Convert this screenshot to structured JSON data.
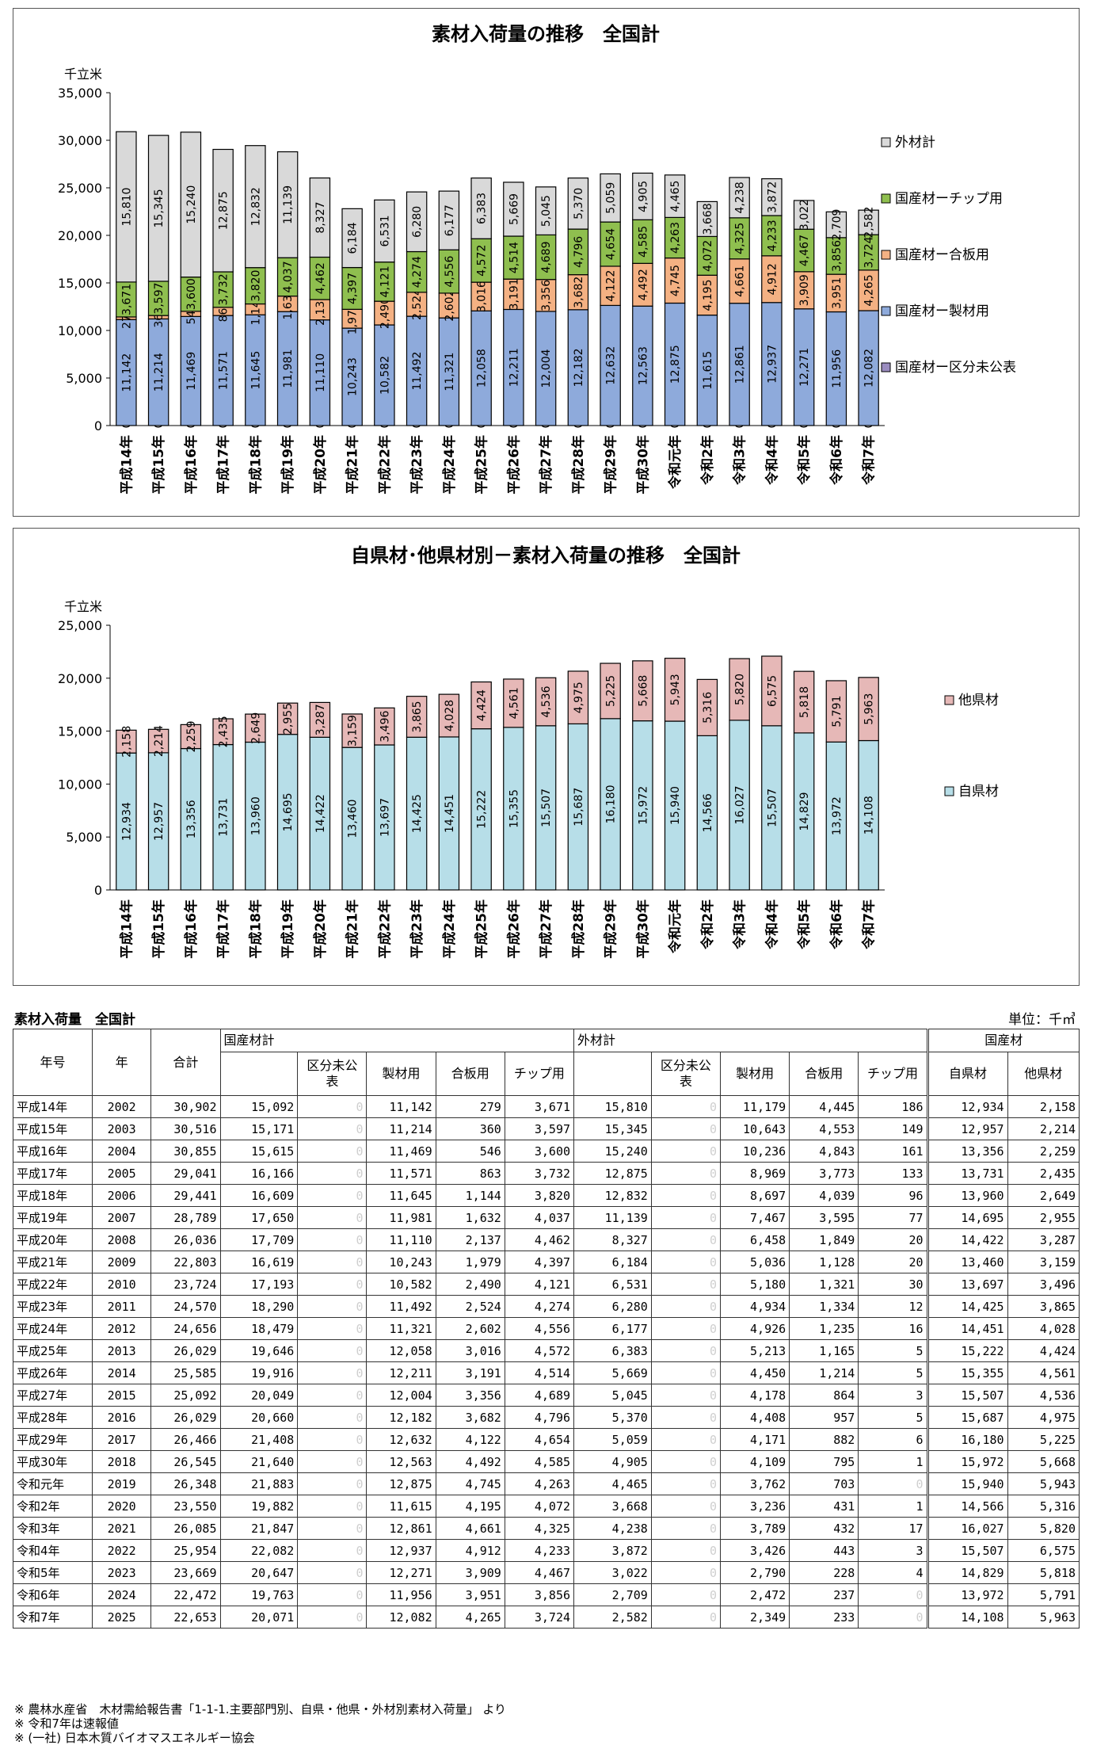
{
  "chart1": {
    "title": "素材入荷量の推移　全国計",
    "yunit": "千立米",
    "chart_data": {
      "type": "bar",
      "stacked": true,
      "title": "素材入荷量の推移　全国計",
      "ylabel": "千立米",
      "ylim": [
        0,
        35000
      ],
      "yticks": [
        "0",
        "5,000",
        "10,000",
        "15,000",
        "20,000",
        "25,000",
        "30,000",
        "35,000"
      ],
      "categories": [
        "平成14年",
        "平成15年",
        "平成16年",
        "平成17年",
        "平成18年",
        "平成19年",
        "平成20年",
        "平成21年",
        "平成22年",
        "平成23年",
        "平成24年",
        "平成25年",
        "平成26年",
        "平成27年",
        "平成28年",
        "平成29年",
        "平成30年",
        "令和元年",
        "令和2年",
        "令和3年",
        "令和4年",
        "令和5年",
        "令和6年",
        "令和7年"
      ],
      "legend_position": "right",
      "series": [
        {
          "name": "国産材ー区分未公表",
          "color": "#9b8dc0",
          "values": [
            0,
            0,
            0,
            0,
            0,
            0,
            0,
            0,
            0,
            0,
            0,
            0,
            0,
            0,
            0,
            0,
            0,
            0,
            0,
            0,
            0,
            0,
            0,
            0
          ]
        },
        {
          "name": "国産材ー製材用",
          "color": "#8eaadb",
          "values": [
            11142,
            11214,
            11469,
            11571,
            11645,
            11981,
            11110,
            10243,
            10582,
            11492,
            11321,
            12058,
            12211,
            12004,
            12182,
            12632,
            12563,
            12875,
            11615,
            12861,
            12937,
            12271,
            11956,
            12082
          ]
        },
        {
          "name": "国産材ー合板用",
          "color": "#f4b183",
          "values": [
            279,
            360,
            546,
            863,
            1144,
            1632,
            2137,
            1979,
            2490,
            2524,
            2602,
            3016,
            3191,
            3356,
            3682,
            4122,
            4492,
            4745,
            4195,
            4661,
            4912,
            3909,
            3951,
            4265
          ]
        },
        {
          "name": "国産材ーチップ用",
          "color": "#8fbf4f",
          "values": [
            3671,
            3597,
            3600,
            3732,
            3820,
            4037,
            4462,
            4397,
            4121,
            4274,
            4556,
            4572,
            4514,
            4689,
            4796,
            4654,
            4585,
            4263,
            4072,
            4325,
            4233,
            4467,
            3856,
            3724
          ]
        },
        {
          "name": "外材計",
          "color": "#d9d9d9",
          "values": [
            15810,
            15345,
            15240,
            12875,
            12832,
            11139,
            8327,
            6184,
            6531,
            6280,
            6177,
            6383,
            5669,
            5045,
            5370,
            5059,
            4905,
            4465,
            3668,
            4238,
            3872,
            3022,
            2709,
            2582
          ]
        }
      ],
      "legend": [
        "外材計",
        "国産材ーチップ用",
        "国産材ー合板用",
        "国産材ー製材用",
        "国産材ー区分未公表"
      ],
      "data_labels": {
        "国産材ー区分未公表": [
          "0",
          "0",
          "0",
          "0",
          "0",
          "0",
          "0",
          "0",
          "0",
          "0",
          "0",
          "0",
          "0",
          "0",
          "0",
          "0",
          "0",
          "0",
          "0",
          "0",
          "0",
          "0",
          "0",
          "0"
        ],
        "国産材ー製材用": [
          "11,142",
          "11,214",
          "11,469",
          "11,571",
          "11,645",
          "11,981",
          "11,110",
          "10,243",
          "10,582",
          "11,492",
          "11,321",
          "12,058",
          "12,211",
          "12,004",
          "12,182",
          "12,632",
          "12,563",
          "12,875",
          "11,615",
          "12,861",
          "12,937",
          "12,271",
          "11,956",
          "12,082"
        ],
        "国産材ー合板用": [
          "279",
          "360",
          "546",
          "863",
          "1,144",
          "1,632",
          "2,137",
          "1,979",
          "2,490",
          "2,524",
          "2,602",
          "3,016",
          "3,191",
          "3,356",
          "3,682",
          "4,122",
          "4,492",
          "4,745",
          "4,195",
          "4,661",
          "4,912",
          "3,909",
          "3,951",
          "4,265"
        ],
        "国産材ーチップ用": [
          "3,671",
          "3,597",
          "3,600",
          "3,732",
          "3,820",
          "4,037",
          "4,462",
          "4,397",
          "4,121",
          "4,274",
          "4,556",
          "4,572",
          "4,514",
          "4,689",
          "4,796",
          "4,654",
          "4,585",
          "4,263",
          "4,072",
          "4,325",
          "4,233",
          "4,467",
          "3,856",
          "3,724"
        ],
        "外材計": [
          "15,810",
          "15,345",
          "15,240",
          "12,875",
          "12,832",
          "11,139",
          "8,327",
          "6,184",
          "6,531",
          "6,280",
          "6,177",
          "6,383",
          "5,669",
          "5,045",
          "5,370",
          "5,059",
          "4,905",
          "4,465",
          "3,668",
          "4,238",
          "3,872",
          "3,022",
          "2,709",
          "2,582"
        ]
      }
    }
  },
  "chart2": {
    "title": "自県材･他県材別－素材入荷量の推移　全国計",
    "yunit": "千立米",
    "chart_data": {
      "type": "bar",
      "stacked": true,
      "title": "自県材･他県材別－素材入荷量の推移　全国計",
      "ylabel": "千立米",
      "ylim": [
        0,
        25000
      ],
      "yticks": [
        "0",
        "5,000",
        "10,000",
        "15,000",
        "20,000",
        "25,000"
      ],
      "categories": [
        "平成14年",
        "平成15年",
        "平成16年",
        "平成17年",
        "平成18年",
        "平成19年",
        "平成20年",
        "平成21年",
        "平成22年",
        "平成23年",
        "平成24年",
        "平成25年",
        "平成26年",
        "平成27年",
        "平成28年",
        "平成29年",
        "平成30年",
        "令和元年",
        "令和2年",
        "令和3年",
        "令和4年",
        "令和5年",
        "令和6年",
        "令和7年"
      ],
      "legend_position": "right",
      "series": [
        {
          "name": "自県材",
          "color": "#b7dee8",
          "values": [
            12934,
            12957,
            13356,
            13731,
            13960,
            14695,
            14422,
            13460,
            13697,
            14425,
            14451,
            15222,
            15355,
            15507,
            15687,
            16180,
            15972,
            15940,
            14566,
            16027,
            15507,
            14829,
            13972,
            14108
          ]
        },
        {
          "name": "他県材",
          "color": "#e6b8b7",
          "values": [
            2158,
            2214,
            2259,
            2435,
            2649,
            2955,
            3287,
            3159,
            3496,
            3865,
            4028,
            4424,
            4561,
            4536,
            4975,
            5225,
            5668,
            5943,
            5316,
            5820,
            6575,
            5818,
            5791,
            5963
          ]
        }
      ],
      "legend": [
        "他県材",
        "自県材"
      ],
      "data_labels": {
        "自県材": [
          "12,934",
          "12,957",
          "13,356",
          "13,731",
          "13,960",
          "14,695",
          "14,422",
          "13,460",
          "13,697",
          "14,425",
          "14,451",
          "15,222",
          "15,355",
          "15,507",
          "15,687",
          "16,180",
          "15,972",
          "15,940",
          "14,566",
          "16,027",
          "15,507",
          "14,829",
          "13,972",
          "14,108"
        ],
        "他県材": [
          "2,158",
          "2,214",
          "2,259",
          "2,435",
          "2,649",
          "2,955",
          "3,287",
          "3,159",
          "3,496",
          "3,865",
          "4,028",
          "4,424",
          "4,561",
          "4,536",
          "4,975",
          "5,225",
          "5,668",
          "5,943",
          "5,316",
          "5,820",
          "6,575",
          "5,818",
          "5,791",
          "5,963"
        ]
      }
    }
  },
  "table": {
    "title": "素材入荷量　全国計",
    "unit": "単位：千㎥",
    "headers": {
      "era": "年号",
      "year": "年",
      "total": "合計",
      "domestic_total": "国産材計",
      "domestic_unpub": "区分未公表",
      "domestic_sawn": "製材用",
      "domestic_plywood": "合板用",
      "domestic_chip": "チップ用",
      "foreign_total": "外材計",
      "foreign_unpub": "区分未公表",
      "foreign_sawn": "製材用",
      "foreign_plywood": "合板用",
      "foreign_chip": "チップ用",
      "domestic_group": "国産材",
      "own_pref": "自県材",
      "other_pref": "他県材"
    },
    "rows": [
      [
        "平成14年",
        "2002",
        "30,902",
        "15,092",
        "0",
        "11,142",
        "279",
        "3,671",
        "15,810",
        "0",
        "11,179",
        "4,445",
        "186",
        "12,934",
        "2,158"
      ],
      [
        "平成15年",
        "2003",
        "30,516",
        "15,171",
        "0",
        "11,214",
        "360",
        "3,597",
        "15,345",
        "0",
        "10,643",
        "4,553",
        "149",
        "12,957",
        "2,214"
      ],
      [
        "平成16年",
        "2004",
        "30,855",
        "15,615",
        "0",
        "11,469",
        "546",
        "3,600",
        "15,240",
        "0",
        "10,236",
        "4,843",
        "161",
        "13,356",
        "2,259"
      ],
      [
        "平成17年",
        "2005",
        "29,041",
        "16,166",
        "0",
        "11,571",
        "863",
        "3,732",
        "12,875",
        "0",
        "8,969",
        "3,773",
        "133",
        "13,731",
        "2,435"
      ],
      [
        "平成18年",
        "2006",
        "29,441",
        "16,609",
        "0",
        "11,645",
        "1,144",
        "3,820",
        "12,832",
        "0",
        "8,697",
        "4,039",
        "96",
        "13,960",
        "2,649"
      ],
      [
        "平成19年",
        "2007",
        "28,789",
        "17,650",
        "0",
        "11,981",
        "1,632",
        "4,037",
        "11,139",
        "0",
        "7,467",
        "3,595",
        "77",
        "14,695",
        "2,955"
      ],
      [
        "平成20年",
        "2008",
        "26,036",
        "17,709",
        "0",
        "11,110",
        "2,137",
        "4,462",
        "8,327",
        "0",
        "6,458",
        "1,849",
        "20",
        "14,422",
        "3,287"
      ],
      [
        "平成21年",
        "2009",
        "22,803",
        "16,619",
        "0",
        "10,243",
        "1,979",
        "4,397",
        "6,184",
        "0",
        "5,036",
        "1,128",
        "20",
        "13,460",
        "3,159"
      ],
      [
        "平成22年",
        "2010",
        "23,724",
        "17,193",
        "0",
        "10,582",
        "2,490",
        "4,121",
        "6,531",
        "0",
        "5,180",
        "1,321",
        "30",
        "13,697",
        "3,496"
      ],
      [
        "平成23年",
        "2011",
        "24,570",
        "18,290",
        "0",
        "11,492",
        "2,524",
        "4,274",
        "6,280",
        "0",
        "4,934",
        "1,334",
        "12",
        "14,425",
        "3,865"
      ],
      [
        "平成24年",
        "2012",
        "24,656",
        "18,479",
        "0",
        "11,321",
        "2,602",
        "4,556",
        "6,177",
        "0",
        "4,926",
        "1,235",
        "16",
        "14,451",
        "4,028"
      ],
      [
        "平成25年",
        "2013",
        "26,029",
        "19,646",
        "0",
        "12,058",
        "3,016",
        "4,572",
        "6,383",
        "0",
        "5,213",
        "1,165",
        "5",
        "15,222",
        "4,424"
      ],
      [
        "平成26年",
        "2014",
        "25,585",
        "19,916",
        "0",
        "12,211",
        "3,191",
        "4,514",
        "5,669",
        "0",
        "4,450",
        "1,214",
        "5",
        "15,355",
        "4,561"
      ],
      [
        "平成27年",
        "2015",
        "25,092",
        "20,049",
        "0",
        "12,004",
        "3,356",
        "4,689",
        "5,045",
        "0",
        "4,178",
        "864",
        "3",
        "15,507",
        "4,536"
      ],
      [
        "平成28年",
        "2016",
        "26,029",
        "20,660",
        "0",
        "12,182",
        "3,682",
        "4,796",
        "5,370",
        "0",
        "4,408",
        "957",
        "5",
        "15,687",
        "4,975"
      ],
      [
        "平成29年",
        "2017",
        "26,466",
        "21,408",
        "0",
        "12,632",
        "4,122",
        "4,654",
        "5,059",
        "0",
        "4,171",
        "882",
        "6",
        "16,180",
        "5,225"
      ],
      [
        "平成30年",
        "2018",
        "26,545",
        "21,640",
        "0",
        "12,563",
        "4,492",
        "4,585",
        "4,905",
        "0",
        "4,109",
        "795",
        "1",
        "15,972",
        "5,668"
      ],
      [
        "令和元年",
        "2019",
        "26,348",
        "21,883",
        "0",
        "12,875",
        "4,745",
        "4,263",
        "4,465",
        "0",
        "3,762",
        "703",
        "0",
        "15,940",
        "5,943"
      ],
      [
        "令和2年",
        "2020",
        "23,550",
        "19,882",
        "0",
        "11,615",
        "4,195",
        "4,072",
        "3,668",
        "0",
        "3,236",
        "431",
        "1",
        "14,566",
        "5,316"
      ],
      [
        "令和3年",
        "2021",
        "26,085",
        "21,847",
        "0",
        "12,861",
        "4,661",
        "4,325",
        "4,238",
        "0",
        "3,789",
        "432",
        "17",
        "16,027",
        "5,820"
      ],
      [
        "令和4年",
        "2022",
        "25,954",
        "22,082",
        "0",
        "12,937",
        "4,912",
        "4,233",
        "3,872",
        "0",
        "3,426",
        "443",
        "3",
        "15,507",
        "6,575"
      ],
      [
        "令和5年",
        "2023",
        "23,669",
        "20,647",
        "0",
        "12,271",
        "3,909",
        "4,467",
        "3,022",
        "0",
        "2,790",
        "228",
        "4",
        "14,829",
        "5,818"
      ],
      [
        "令和6年",
        "2024",
        "22,472",
        "19,763",
        "0",
        "11,956",
        "3,951",
        "3,856",
        "2,709",
        "0",
        "2,472",
        "237",
        "0",
        "13,972",
        "5,791"
      ],
      [
        "令和7年",
        "2025",
        "22,653",
        "20,071",
        "0",
        "12,082",
        "4,265",
        "3,724",
        "2,582",
        "0",
        "2,349",
        "233",
        "0",
        "14,108",
        "5,963"
      ]
    ]
  },
  "notes": [
    "※ 農林水産省　木材需給報告書「1-1-1.主要部門別、自県・他県・外材別素材入荷量」 より",
    "※ 令和7年は速報値",
    "※ (一社) 日本木質バイオマスエネルギー協会"
  ]
}
